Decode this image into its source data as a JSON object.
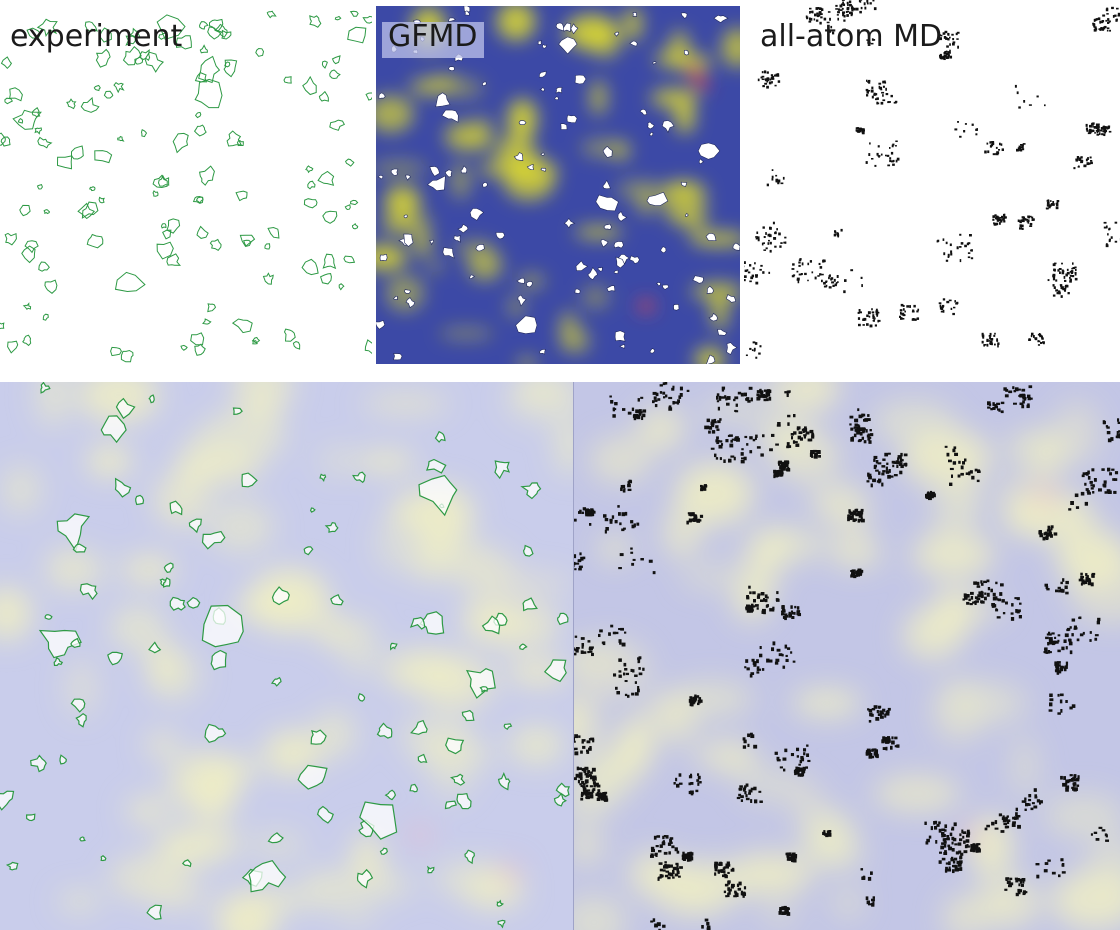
{
  "figure": {
    "panel_labels": {
      "experiment": "experiment",
      "gfmd": "GFMD",
      "all_atom": "all-atom MD"
    }
  },
  "colors": {
    "gfmd_background": "#3c49a6",
    "gfmd_peak_yellow": "#e3df2a",
    "gfmd_peak_red": "#e8464e",
    "contact_white": "#ffffff",
    "experiment_contour": "#2e9a45",
    "allatom_points": "#111111",
    "overlay_background": "#c9cdeb",
    "overlay_yellow": "#efeec4"
  }
}
